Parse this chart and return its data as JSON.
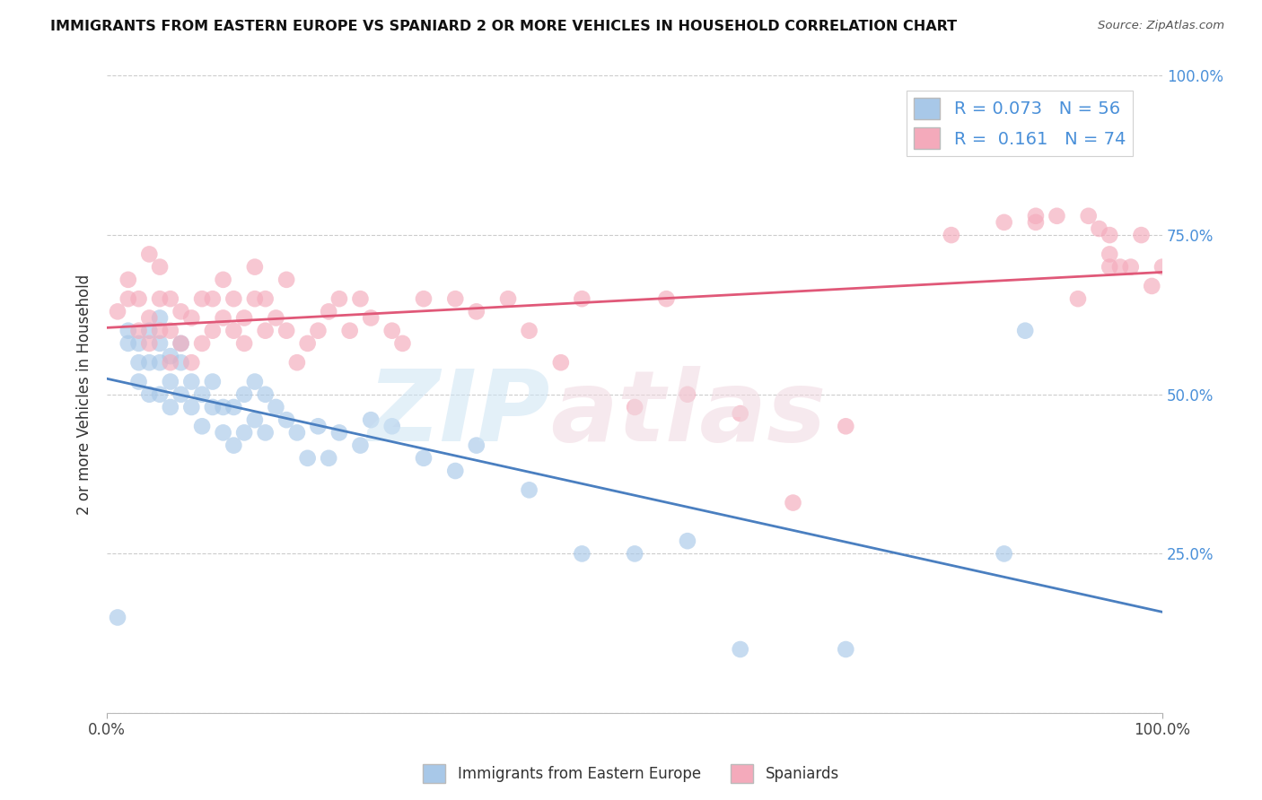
{
  "title": "IMMIGRANTS FROM EASTERN EUROPE VS SPANIARD 2 OR MORE VEHICLES IN HOUSEHOLD CORRELATION CHART",
  "source": "Source: ZipAtlas.com",
  "ylabel": "2 or more Vehicles in Household",
  "blue_R": 0.073,
  "blue_N": 56,
  "pink_R": 0.161,
  "pink_N": 74,
  "blue_color": "#a8c8e8",
  "pink_color": "#f4aabb",
  "blue_line_color": "#4a7fc0",
  "pink_line_color": "#e05878",
  "blue_scatter_x": [
    0.01,
    0.02,
    0.02,
    0.03,
    0.03,
    0.03,
    0.04,
    0.04,
    0.04,
    0.05,
    0.05,
    0.05,
    0.05,
    0.06,
    0.06,
    0.06,
    0.07,
    0.07,
    0.07,
    0.08,
    0.08,
    0.09,
    0.09,
    0.1,
    0.1,
    0.11,
    0.11,
    0.12,
    0.12,
    0.13,
    0.13,
    0.14,
    0.14,
    0.15,
    0.15,
    0.16,
    0.17,
    0.18,
    0.19,
    0.2,
    0.21,
    0.22,
    0.24,
    0.25,
    0.27,
    0.3,
    0.33,
    0.35,
    0.4,
    0.45,
    0.5,
    0.55,
    0.6,
    0.7,
    0.85,
    0.87
  ],
  "blue_scatter_y": [
    0.15,
    0.58,
    0.6,
    0.52,
    0.55,
    0.58,
    0.5,
    0.55,
    0.6,
    0.5,
    0.55,
    0.58,
    0.62,
    0.48,
    0.52,
    0.56,
    0.5,
    0.55,
    0.58,
    0.48,
    0.52,
    0.45,
    0.5,
    0.48,
    0.52,
    0.44,
    0.48,
    0.42,
    0.48,
    0.44,
    0.5,
    0.46,
    0.52,
    0.44,
    0.5,
    0.48,
    0.46,
    0.44,
    0.4,
    0.45,
    0.4,
    0.44,
    0.42,
    0.46,
    0.45,
    0.4,
    0.38,
    0.42,
    0.35,
    0.25,
    0.25,
    0.27,
    0.1,
    0.1,
    0.25,
    0.6
  ],
  "pink_scatter_x": [
    0.01,
    0.02,
    0.02,
    0.03,
    0.03,
    0.04,
    0.04,
    0.04,
    0.05,
    0.05,
    0.05,
    0.06,
    0.06,
    0.06,
    0.07,
    0.07,
    0.08,
    0.08,
    0.09,
    0.09,
    0.1,
    0.1,
    0.11,
    0.11,
    0.12,
    0.12,
    0.13,
    0.13,
    0.14,
    0.14,
    0.15,
    0.15,
    0.16,
    0.17,
    0.17,
    0.18,
    0.19,
    0.2,
    0.21,
    0.22,
    0.23,
    0.24,
    0.25,
    0.27,
    0.28,
    0.3,
    0.33,
    0.35,
    0.38,
    0.4,
    0.43,
    0.45,
    0.5,
    0.53,
    0.55,
    0.6,
    0.65,
    0.7,
    0.8,
    0.85,
    0.88,
    0.88,
    0.9,
    0.92,
    0.93,
    0.94,
    0.95,
    0.95,
    0.95,
    0.96,
    0.97,
    0.98,
    0.99,
    1.0
  ],
  "pink_scatter_y": [
    0.63,
    0.65,
    0.68,
    0.6,
    0.65,
    0.58,
    0.62,
    0.72,
    0.6,
    0.65,
    0.7,
    0.55,
    0.6,
    0.65,
    0.58,
    0.63,
    0.55,
    0.62,
    0.58,
    0.65,
    0.6,
    0.65,
    0.62,
    0.68,
    0.6,
    0.65,
    0.58,
    0.62,
    0.65,
    0.7,
    0.6,
    0.65,
    0.62,
    0.6,
    0.68,
    0.55,
    0.58,
    0.6,
    0.63,
    0.65,
    0.6,
    0.65,
    0.62,
    0.6,
    0.58,
    0.65,
    0.65,
    0.63,
    0.65,
    0.6,
    0.55,
    0.65,
    0.48,
    0.65,
    0.5,
    0.47,
    0.33,
    0.45,
    0.75,
    0.77,
    0.78,
    0.77,
    0.78,
    0.65,
    0.78,
    0.76,
    0.75,
    0.7,
    0.72,
    0.7,
    0.7,
    0.75,
    0.67,
    0.7
  ]
}
